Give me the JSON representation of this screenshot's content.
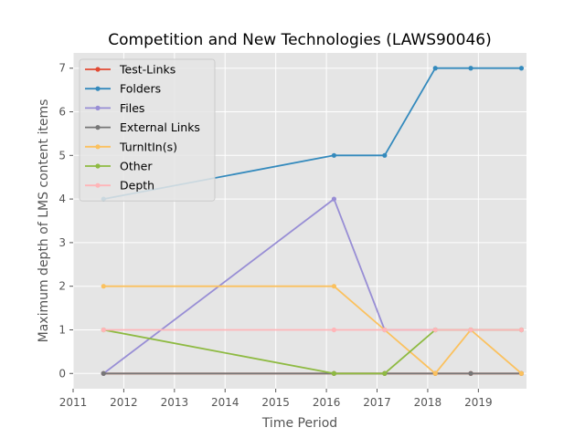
{
  "chart_data": {
    "type": "line",
    "title": "Competition and New Technologies (LAWS90046)",
    "xlabel": "Time Period",
    "ylabel": "Maximum depth of LMS content items",
    "xlim": [
      2011.0,
      2019.95
    ],
    "ylim": [
      -0.35,
      7.35
    ],
    "x_ticks": [
      2011,
      2012,
      2013,
      2014,
      2015,
      2016,
      2017,
      2018,
      2019
    ],
    "x_tick_labels": [
      "2011",
      "2012",
      "2013",
      "2014",
      "2015",
      "2016",
      "2017",
      "2018",
      "2019"
    ],
    "y_ticks": [
      0,
      1,
      2,
      3,
      4,
      5,
      6,
      7
    ],
    "y_tick_labels": [
      "0",
      "1",
      "2",
      "3",
      "4",
      "5",
      "6",
      "7"
    ],
    "grid": true,
    "legend_position": "top-left",
    "x": [
      2011.6,
      2016.15,
      2017.15,
      2018.15,
      2018.85,
      2019.85
    ],
    "series": [
      {
        "name": "Test-Links",
        "color": "#E24A33",
        "values": [
          0,
          0,
          0,
          0,
          0,
          0
        ]
      },
      {
        "name": "Folders",
        "color": "#348ABD",
        "values": [
          4,
          5,
          5,
          7,
          7,
          7
        ]
      },
      {
        "name": "Files",
        "color": "#988ED5",
        "values": [
          0,
          4,
          1,
          1,
          1,
          1
        ]
      },
      {
        "name": "External Links",
        "color": "#777777",
        "values": [
          0,
          0,
          0,
          0,
          0,
          0
        ]
      },
      {
        "name": "TurnItIn(s)",
        "color": "#FBC15E",
        "values": [
          2,
          2,
          1,
          0,
          1,
          0
        ]
      },
      {
        "name": "Other",
        "color": "#8EBA42",
        "values": [
          1,
          0,
          0,
          1,
          1,
          1
        ]
      },
      {
        "name": "Depth",
        "color": "#FFB5B8",
        "values": [
          1,
          1,
          1,
          1,
          1,
          1
        ]
      }
    ]
  }
}
